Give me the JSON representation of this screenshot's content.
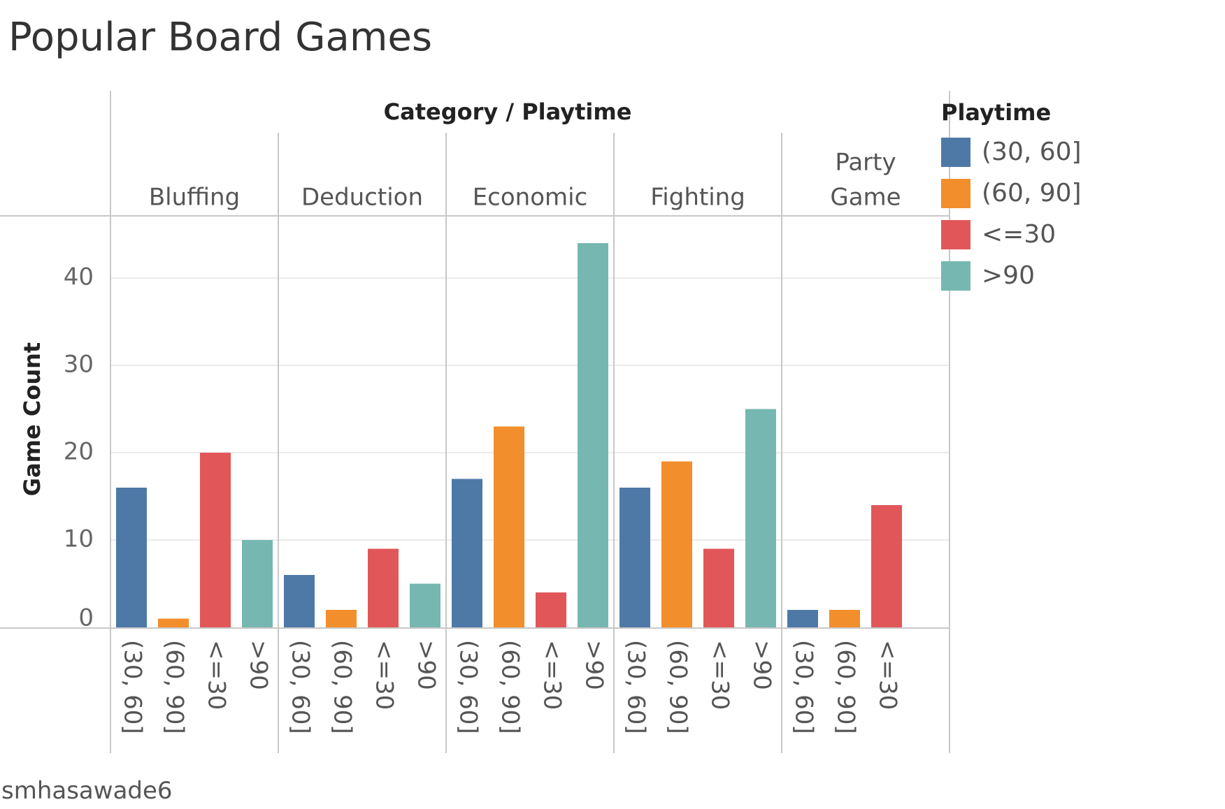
{
  "title": "Popular Board Games",
  "author": "smhasawade6",
  "legend": {
    "title": "Playtime",
    "items": [
      {
        "label": "(30, 60]",
        "color": "#4e79a7"
      },
      {
        "label": "(60, 90]",
        "color": "#f28e2b"
      },
      {
        "label": "<=30",
        "color": "#e15759"
      },
      {
        "label": ">90",
        "color": "#76b7b2"
      }
    ]
  },
  "chart_data": {
    "type": "bar",
    "header_title": "Category / Playtime",
    "ylabel": "Game Count",
    "ylim": [
      0,
      45
    ],
    "yticks": [
      0,
      10,
      20,
      30,
      40
    ],
    "grid": true,
    "legend_position": "right",
    "panels": [
      {
        "category_label": [
          "Bluffing"
        ],
        "bars": [
          {
            "playtime": "(30, 60]",
            "value": 16
          },
          {
            "playtime": "(60, 90]",
            "value": 1
          },
          {
            "playtime": "<=30",
            "value": 20
          },
          {
            "playtime": ">90",
            "value": 10
          }
        ]
      },
      {
        "category_label": [
          "Deduction"
        ],
        "bars": [
          {
            "playtime": "(30, 60]",
            "value": 6
          },
          {
            "playtime": "(60, 90]",
            "value": 2
          },
          {
            "playtime": "<=30",
            "value": 9
          },
          {
            "playtime": ">90",
            "value": 5
          }
        ]
      },
      {
        "category_label": [
          "Economic"
        ],
        "bars": [
          {
            "playtime": "(30, 60]",
            "value": 17
          },
          {
            "playtime": "(60, 90]",
            "value": 23
          },
          {
            "playtime": "<=30",
            "value": 4
          },
          {
            "playtime": ">90",
            "value": 44
          }
        ]
      },
      {
        "category_label": [
          "Fighting"
        ],
        "bars": [
          {
            "playtime": "(30, 60]",
            "value": 16
          },
          {
            "playtime": "(60, 90]",
            "value": 19
          },
          {
            "playtime": "<=30",
            "value": 9
          },
          {
            "playtime": ">90",
            "value": 25
          }
        ]
      },
      {
        "category_label": [
          "Party",
          "Game"
        ],
        "bars": [
          {
            "playtime": "(30, 60]",
            "value": 2
          },
          {
            "playtime": "(60, 90]",
            "value": 2
          },
          {
            "playtime": "<=30",
            "value": 14
          }
        ]
      }
    ]
  }
}
